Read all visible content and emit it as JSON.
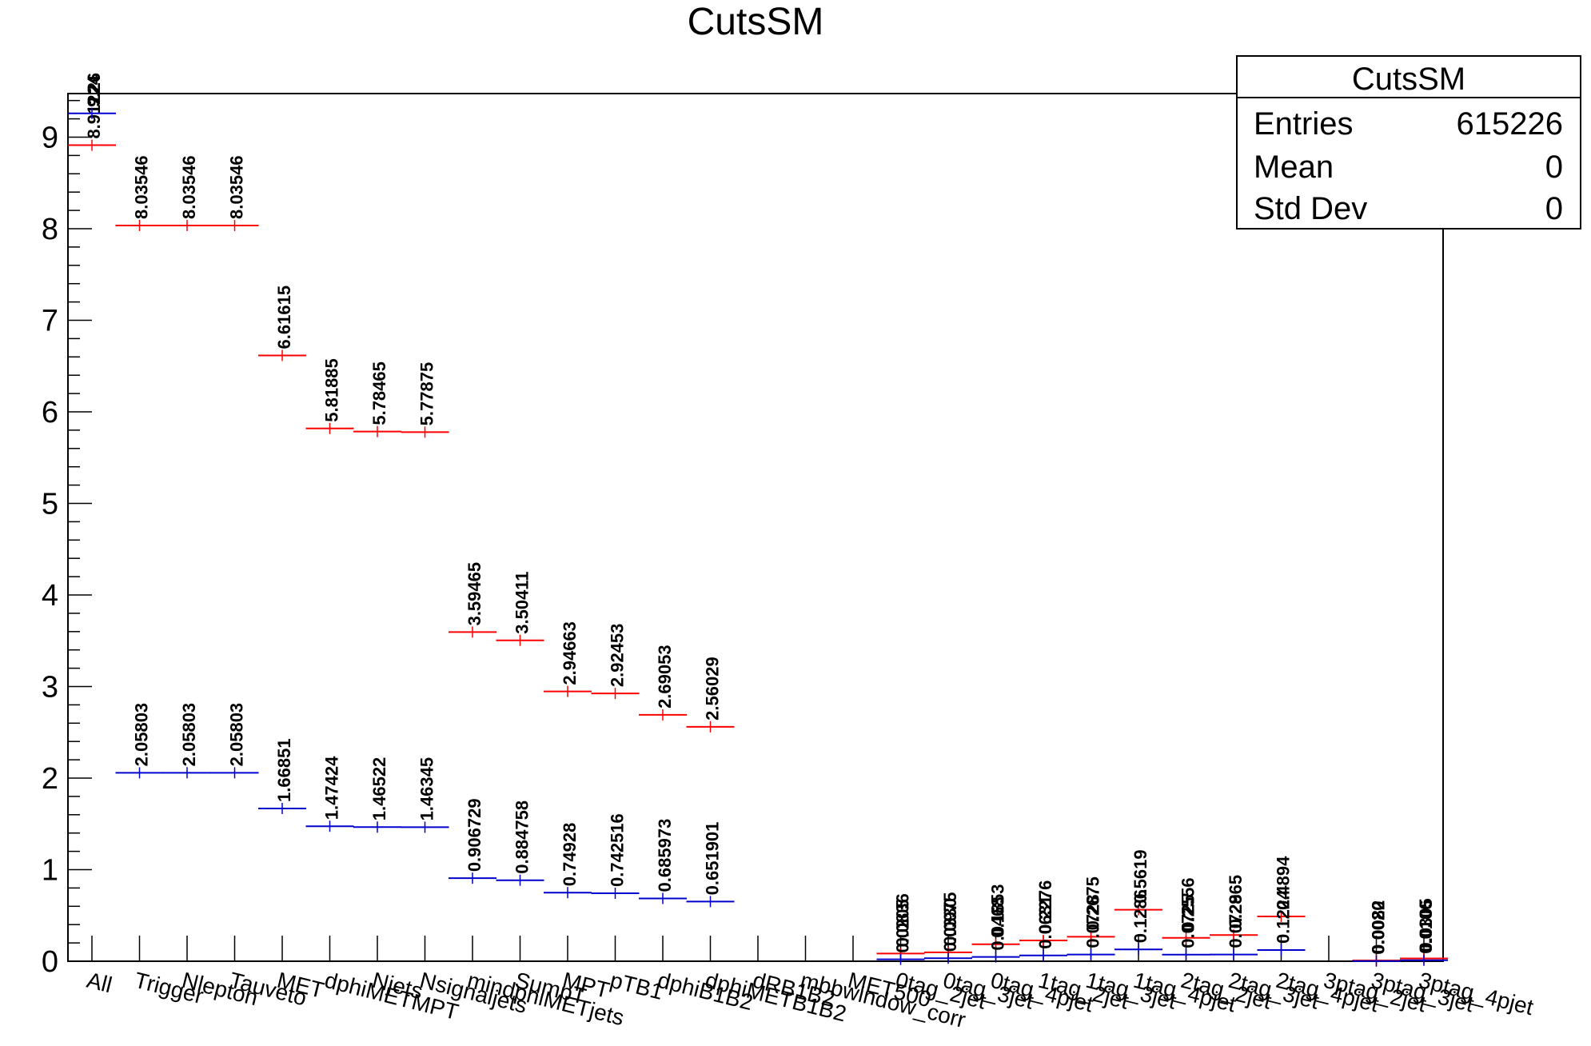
{
  "chart_data": {
    "type": "line",
    "title": "CutsSM",
    "xlabel": "",
    "ylabel": "",
    "ylim": [
      0,
      9.4
    ],
    "y_ticks": [
      0,
      1,
      2,
      3,
      4,
      5,
      6,
      7,
      8,
      9
    ],
    "grid": false,
    "legend": "top-right",
    "categories": [
      "All",
      "Trigger",
      "Nlepton",
      "Tauveto",
      "MET",
      "dphiMETMPT",
      "Njets",
      "Nsignaljets",
      "mindphiMETjets",
      "SumpT",
      "MPT",
      "pTB1",
      "dphiB1B2",
      "dphiMETB1B2",
      "dRB1B2",
      "mbbwindow_corr",
      "MET500",
      "0tag_2jet",
      "0tag_3jet",
      "0tag_4pjet",
      "1tag_2jet",
      "1tag_3jet",
      "1tag_4pjet",
      "2tag_2jet",
      "2tag_3jet",
      "2tag_4pjet",
      "3ptag_2jet",
      "3ptag_3jet",
      "3ptag_4pjet"
    ],
    "series": [
      {
        "color": "#ff0000",
        "values": [
          8.91224,
          8.03546,
          8.03546,
          8.03546,
          6.61615,
          5.81885,
          5.78465,
          5.77875,
          3.59465,
          3.50411,
          2.94663,
          2.92453,
          2.69053,
          2.56029,
          null,
          null,
          null,
          0.0836,
          0.0975,
          0.1853,
          0.2276,
          0.2675,
          0.5619,
          0.2556,
          0.2865,
          0.4894,
          null,
          0.0082,
          0.0305
        ],
        "labels": [
          "8.91224",
          "8.03546",
          "8.03546",
          "8.03546",
          "6.61615",
          "5.81885",
          "5.78465",
          "5.77875",
          "3.59465",
          "3.50411",
          "2.94663",
          "2.92453",
          "2.69053",
          "2.56029",
          "",
          "",
          "",
          "0.0836",
          "0.0975",
          "0.1853",
          "0.2276",
          "0.2675",
          "0.5619",
          "0.2556",
          "0.2865",
          "0.4894",
          "",
          "0.0082",
          "0.0305"
        ]
      },
      {
        "color": "#0000cc",
        "values": [
          9.26,
          2.05803,
          2.05803,
          2.05803,
          1.66851,
          1.47424,
          1.46522,
          1.46345,
          0.906729,
          0.884758,
          0.74928,
          0.742516,
          0.685973,
          0.651901,
          null,
          null,
          null,
          0.0205,
          0.033,
          0.0468,
          0.0631,
          0.0728,
          0.1286,
          0.0725,
          0.0729,
          0.1224,
          null,
          0.002,
          0.0106
        ],
        "labels": [
          "9.26",
          "2.05803",
          "2.05803",
          "2.05803",
          "1.66851",
          "1.47424",
          "1.46522",
          "1.46345",
          "0.906729",
          "0.884758",
          "0.74928",
          "0.742516",
          "0.685973",
          "0.651901",
          "",
          "",
          "",
          "0.0205",
          "0.0330",
          "0.0468",
          "0.0631",
          "0.0728",
          "0.1286",
          "0.0725",
          "0.0729",
          "0.1224",
          "",
          "0.0020",
          "0.0106"
        ]
      }
    ],
    "stats_box": {
      "title": "CutsSM",
      "rows": [
        {
          "label": "Entries",
          "value": "615226"
        },
        {
          "label": "Mean",
          "value": "0"
        },
        {
          "label": "Std Dev",
          "value": "0"
        }
      ]
    }
  }
}
